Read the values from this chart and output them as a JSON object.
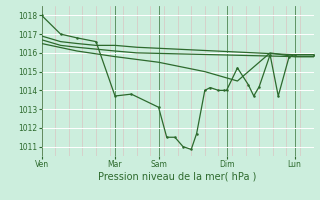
{
  "background_color": "#cceedd",
  "grid_color": "#ffffff",
  "line_color": "#2d6a2d",
  "title": "Pression niveau de la mer( hPa )",
  "ylim": [
    1010.5,
    1018.5
  ],
  "yticks": [
    1011,
    1012,
    1013,
    1014,
    1015,
    1016,
    1017,
    1018
  ],
  "day_labels": [
    "Ven",
    "Mar",
    "Sam",
    "Dim",
    "Lun"
  ],
  "day_positions": [
    0.0,
    0.27,
    0.43,
    0.68,
    0.93
  ],
  "vline_positions": [
    0.0,
    0.27,
    0.43,
    0.68,
    0.93
  ],
  "xlim": [
    0.0,
    1.0
  ],
  "series1": {
    "x": [
      0.0,
      0.07,
      0.13,
      0.2,
      0.27,
      0.33,
      0.43,
      0.46,
      0.49,
      0.52,
      0.55,
      0.57,
      0.6,
      0.62,
      0.65,
      0.67,
      0.68,
      0.72,
      0.76,
      0.78,
      0.8,
      0.84,
      0.87,
      0.91,
      0.93,
      1.0
    ],
    "y": [
      1018.0,
      1017.0,
      1016.8,
      1016.6,
      1013.7,
      1013.8,
      1013.1,
      1011.5,
      1011.5,
      1011.0,
      1010.85,
      1011.7,
      1014.0,
      1014.15,
      1014.0,
      1014.0,
      1014.0,
      1015.2,
      1014.3,
      1013.7,
      1014.2,
      1015.9,
      1013.7,
      1015.8,
      1015.9,
      1015.9
    ]
  },
  "series2": {
    "x": [
      0.0,
      0.07,
      0.13,
      0.2,
      0.27,
      0.35,
      0.93,
      1.0
    ],
    "y": [
      1016.9,
      1016.6,
      1016.5,
      1016.4,
      1016.4,
      1016.3,
      1015.9,
      1015.9
    ]
  },
  "series3": {
    "x": [
      0.0,
      0.07,
      0.13,
      0.2,
      0.27,
      0.35,
      0.93,
      1.0
    ],
    "y": [
      1016.7,
      1016.4,
      1016.3,
      1016.2,
      1016.1,
      1016.0,
      1015.8,
      1015.8
    ]
  },
  "series4": {
    "x": [
      0.0,
      0.13,
      0.27,
      0.43,
      0.6,
      0.72,
      0.84,
      0.93,
      1.0
    ],
    "y": [
      1016.5,
      1016.1,
      1015.8,
      1015.5,
      1015.0,
      1014.5,
      1016.0,
      1015.8,
      1015.8
    ]
  },
  "figsize": [
    3.2,
    2.0
  ],
  "dpi": 100,
  "tick_fontsize": 5.5,
  "xlabel_fontsize": 7.0
}
